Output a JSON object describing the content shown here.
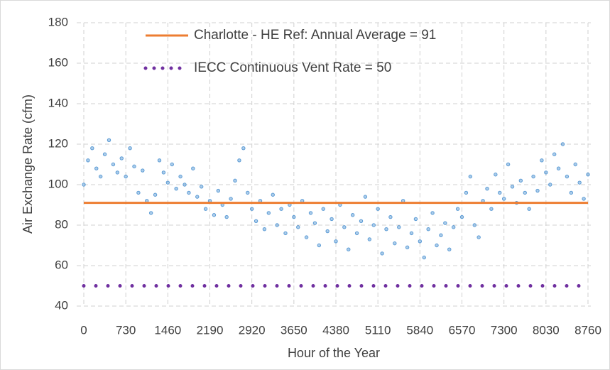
{
  "chart_data": {
    "type": "scatter",
    "y_label": "Air Exchange Rate (cfm)",
    "x_label": "Hour of the Year",
    "xlim": [
      0,
      8760
    ],
    "xticks": [
      0,
      730,
      1460,
      2190,
      2920,
      3650,
      4380,
      5110,
      5840,
      6570,
      7300,
      8030,
      8760
    ],
    "ylim": [
      40,
      180
    ],
    "yticks": [
      40,
      60,
      80,
      100,
      120,
      140,
      160,
      180
    ],
    "grid": true,
    "legend": "top-left",
    "series": [
      {
        "color": "#5b9bd5",
        "x": [
          0,
          73,
          146,
          219,
          292,
          365,
          438,
          511,
          584,
          657,
          730,
          803,
          876,
          949,
          1022,
          1095,
          1168,
          1241,
          1314,
          1387,
          1460,
          1533,
          1606,
          1679,
          1752,
          1825,
          1898,
          1971,
          2044,
          2117,
          2190,
          2263,
          2336,
          2409,
          2482,
          2555,
          2628,
          2701,
          2774,
          2847,
          2920,
          2993,
          3066,
          3139,
          3212,
          3285,
          3358,
          3431,
          3504,
          3577,
          3650,
          3723,
          3796,
          3869,
          3942,
          4015,
          4088,
          4161,
          4234,
          4307,
          4380,
          4453,
          4526,
          4599,
          4672,
          4745,
          4818,
          4891,
          4964,
          5037,
          5110,
          5183,
          5256,
          5329,
          5402,
          5475,
          5548,
          5621,
          5694,
          5767,
          5840,
          5913,
          5986,
          6059,
          6132,
          6205,
          6278,
          6351,
          6424,
          6497,
          6570,
          6643,
          6716,
          6789,
          6862,
          6935,
          7008,
          7081,
          7154,
          7227,
          7300,
          7373,
          7446,
          7519,
          7592,
          7665,
          7738,
          7811,
          7884,
          7957,
          8030,
          8103,
          8176,
          8249,
          8322,
          8395,
          8468,
          8541,
          8614,
          8687,
          8760
        ],
        "values": [
          100,
          112,
          118,
          108,
          104,
          115,
          122,
          110,
          106,
          113,
          104,
          118,
          109,
          96,
          107,
          92,
          86,
          95,
          112,
          106,
          101,
          110,
          98,
          104,
          100,
          96,
          108,
          94,
          99,
          88,
          92,
          85,
          97,
          90,
          84,
          93,
          102,
          112,
          118,
          96,
          88,
          82,
          92,
          78,
          86,
          95,
          80,
          88,
          76,
          90,
          84,
          79,
          92,
          74,
          86,
          81,
          70,
          88,
          77,
          83,
          72,
          90,
          79,
          68,
          85,
          76,
          82,
          94,
          73,
          80,
          88,
          66,
          78,
          84,
          71,
          79,
          92,
          69,
          76,
          83,
          72,
          64,
          78,
          86,
          70,
          75,
          81,
          68,
          79,
          88,
          84,
          96,
          104,
          80,
          74,
          92,
          98,
          88,
          105,
          96,
          93,
          110,
          99,
          91,
          102,
          96,
          88,
          104,
          97,
          112,
          106,
          100,
          115,
          108,
          120,
          104,
          96,
          110,
          101,
          93,
          105
        ]
      },
      {
        "name": "Charlotte - HE Ref:  Annual Average = 91",
        "color": "#ed7d31",
        "line": "solid",
        "x": [
          0,
          8760
        ],
        "values": [
          91,
          91
        ]
      },
      {
        "name": "IECC Continuous Vent Rate = 50",
        "color": "#7030a0",
        "line": "dotted",
        "x": [
          0,
          8760
        ],
        "values": [
          50,
          50
        ]
      }
    ]
  }
}
